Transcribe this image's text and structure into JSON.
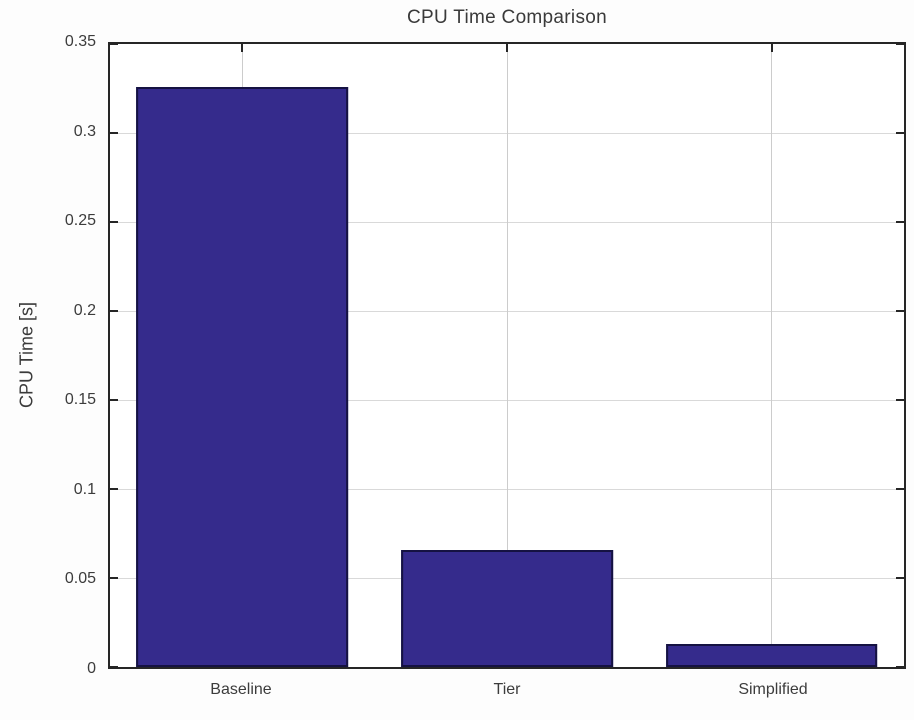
{
  "figure": {
    "title": "CPU Time Comparison"
  },
  "chart_data": {
    "type": "bar",
    "title": "CPU Time Comparison",
    "categories": [
      "Baseline",
      "Tier",
      "Simplified"
    ],
    "values": [
      0.326,
      0.066,
      0.013
    ],
    "xlabel": "",
    "ylabel": "CPU Time [s]",
    "ylim": [
      0,
      0.35
    ],
    "ytick_values": [
      0,
      0.05,
      0.1,
      0.15,
      0.2,
      0.25,
      0.3,
      0.35
    ],
    "ytick_labels": [
      "0",
      "0.05",
      "0.1",
      "0.15",
      "0.2",
      "0.25",
      "0.3",
      "0.35"
    ],
    "bar_width_fraction": 0.8,
    "grid": true,
    "legend_position": "none",
    "colors": {
      "bar_face": "#352B8C",
      "bar_edge": "#151242",
      "grid_h": "#d9d9d9",
      "grid_v": "#cccccc",
      "axis_box": "#262626",
      "text": "#3a3a3a"
    }
  }
}
